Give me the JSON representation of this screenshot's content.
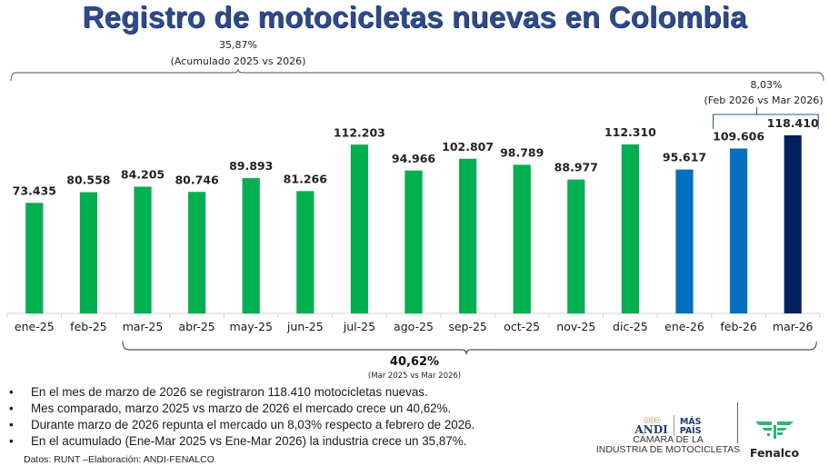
{
  "title": "Registro de motocicletas nuevas en Colombia",
  "chart_data": {
    "type": "bar",
    "title": "Registro de motocicletas nuevas en Colombia",
    "xlabel": "",
    "ylabel": "",
    "ylim": [
      0,
      118410
    ],
    "grid": false,
    "categories": [
      "ene-25",
      "feb-25",
      "mar-25",
      "abr-25",
      "may-25",
      "jun-25",
      "jul-25",
      "ago-25",
      "sep-25",
      "oct-25",
      "nov-25",
      "dic-25",
      "ene-26",
      "feb-26",
      "mar-26"
    ],
    "values": [
      73435,
      80558,
      84205,
      80746,
      89893,
      81266,
      112203,
      94966,
      102807,
      98789,
      88977,
      112310,
      95617,
      109606,
      118410
    ],
    "value_labels": [
      "73.435",
      "80.558",
      "84.205",
      "80.746",
      "89.893",
      "81.266",
      "112.203",
      "94.966",
      "102.807",
      "98.789",
      "88.977",
      "112.310",
      "95.617",
      "109.606",
      "118.410"
    ],
    "bar_colors": [
      "#00B050",
      "#00B050",
      "#00B050",
      "#00B050",
      "#00B050",
      "#00B050",
      "#00B050",
      "#00B050",
      "#00B050",
      "#00B050",
      "#00B050",
      "#00B050",
      "#0070C0",
      "#0070C0",
      "#002060"
    ],
    "annotations": [
      {
        "id": "accum",
        "value": "35,87%",
        "caption": "(Acumulado 2025 vs 2026)",
        "from": "ene-25",
        "to": "mar-26",
        "position": "top"
      },
      {
        "id": "monthly",
        "value": "8,03%",
        "caption": "(Feb 2026 vs Mar 2026)",
        "from": "feb-26",
        "to": "mar-26",
        "position": "top"
      },
      {
        "id": "yoy",
        "value": "40,62%",
        "caption": "(Mar 2025 vs Mar 2026)",
        "from": "mar-25",
        "to": "mar-26",
        "position": "bottom"
      }
    ]
  },
  "bullets": [
    "En el mes de marzo de 2026 se registraron 118.410 motocicletas nuevas.",
    "Mes comparado, marzo 2025 vs marzo de 2026 el mercado crece un 40,62%.",
    "Durante marzo de 2026 repunta el mercado un 8,03% respecto a febrero de 2026.",
    "En el acumulado (Ene-Mar 2025 vs Ene-Mar 2026) la industria crece un 35,87%."
  ],
  "bullet_symbol": "•",
  "source": "Datos: RUNT –Elaboración: ANDI-FENALCO",
  "logos": {
    "andi": "ANDI",
    "mas_pais_1": "MÁS",
    "mas_pais_2": "PAÍS",
    "camara_1": "CÁMARA DE LA",
    "camara_2": "INDUSTRIA DE MOTOCICLETAS",
    "fenalco": "Fenalco"
  }
}
